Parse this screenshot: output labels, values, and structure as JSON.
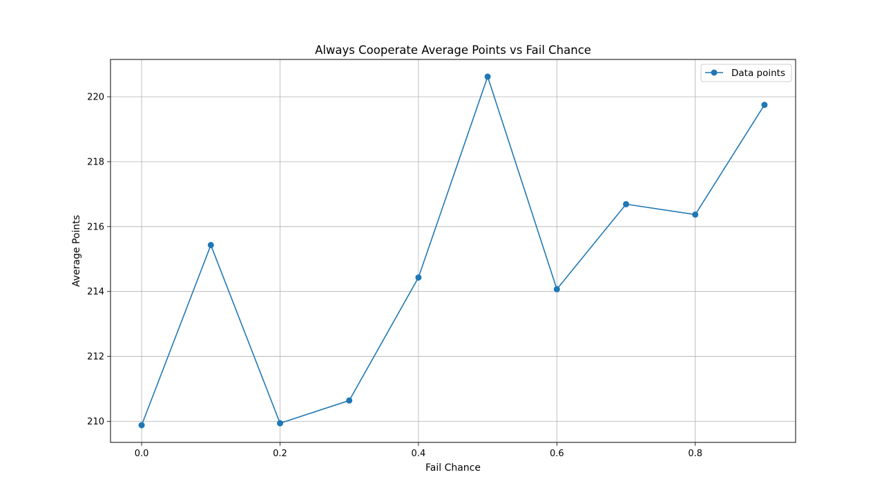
{
  "chart_data": {
    "type": "line",
    "title": "Always Cooperate Average Points vs Fail Chance",
    "xlabel": "Fail Chance",
    "ylabel": "Average Points",
    "x": [
      0.0,
      0.1,
      0.2,
      0.3,
      0.4,
      0.5,
      0.6,
      0.7,
      0.8,
      0.9
    ],
    "series": [
      {
        "name": "Data points",
        "values": [
          209.88,
          215.43,
          209.94,
          210.64,
          214.43,
          220.62,
          214.07,
          216.69,
          216.37,
          219.75
        ],
        "color": "#1f77b4",
        "marker": "circle"
      }
    ],
    "xticks": [
      "0.0",
      "0.2",
      "0.4",
      "0.6",
      "0.8"
    ],
    "xtick_values": [
      0.0,
      0.2,
      0.4,
      0.6,
      0.8
    ],
    "yticks": [
      "210",
      "212",
      "214",
      "216",
      "218",
      "220"
    ],
    "ytick_values": [
      210,
      212,
      214,
      216,
      218,
      220
    ],
    "xlim": [
      -0.045,
      0.945
    ],
    "ylim": [
      209.35,
      221.15
    ],
    "grid": true,
    "legend_position": "top-right"
  }
}
